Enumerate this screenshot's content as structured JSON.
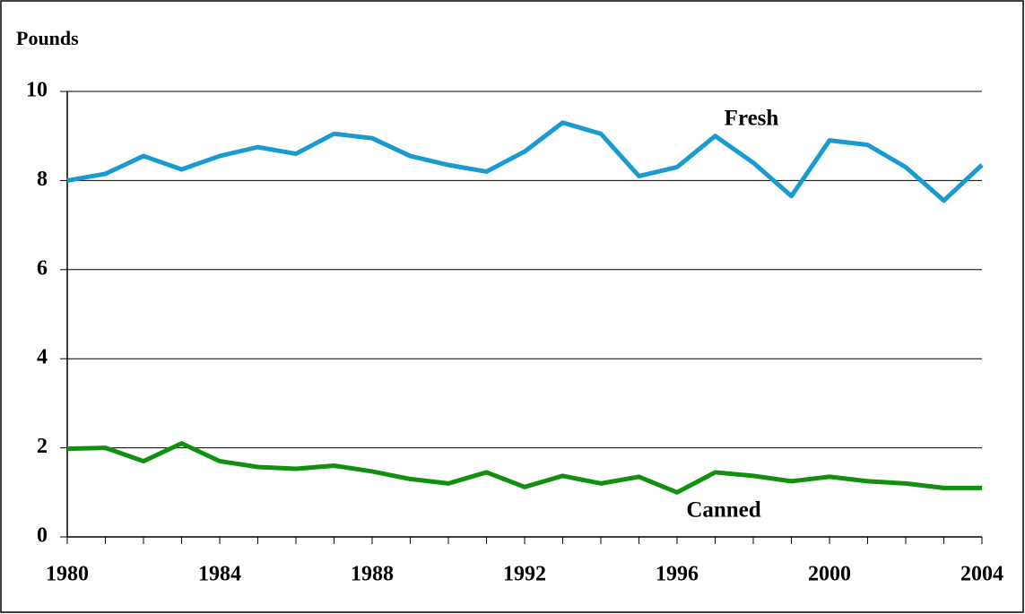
{
  "chart_data": {
    "type": "line",
    "y_label": "Pounds",
    "x": [
      1980,
      1981,
      1982,
      1983,
      1984,
      1985,
      1986,
      1987,
      1988,
      1989,
      1990,
      1991,
      1992,
      1993,
      1994,
      1995,
      1996,
      1997,
      1998,
      1999,
      2000,
      2001,
      2002,
      2003,
      2004
    ],
    "series": [
      {
        "name": "Fresh",
        "color": "#1a9bd0",
        "values": [
          8.0,
          8.15,
          8.55,
          8.25,
          8.55,
          8.75,
          8.6,
          9.05,
          8.95,
          8.55,
          8.35,
          8.2,
          8.65,
          9.3,
          9.05,
          8.1,
          8.3,
          9.0,
          8.4,
          7.65,
          8.9,
          8.8,
          8.3,
          7.55,
          8.35
        ]
      },
      {
        "name": "Canned",
        "color": "#11900f",
        "values": [
          1.98,
          2.0,
          1.7,
          2.1,
          1.7,
          1.57,
          1.53,
          1.6,
          1.47,
          1.3,
          1.2,
          1.45,
          1.12,
          1.37,
          1.2,
          1.35,
          1.0,
          1.45,
          1.37,
          1.25,
          1.35,
          1.25,
          1.2,
          1.1,
          1.1
        ]
      }
    ],
    "xlim": [
      1980,
      2004
    ],
    "xticks": [
      1980,
      1984,
      1988,
      1992,
      1996,
      2000,
      2004
    ],
    "ylim": [
      0,
      10
    ],
    "yticks": [
      0,
      2,
      4,
      6,
      8,
      10
    ],
    "grid": true
  }
}
